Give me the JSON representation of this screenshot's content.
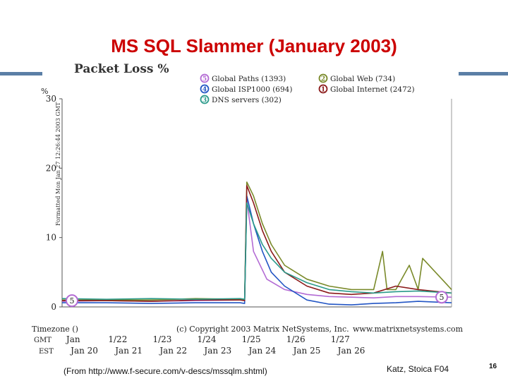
{
  "slide": {
    "title": "MS SQL Slammer (January 2003)",
    "source": "(From http://www.f-secure.com/v-descs/mssqlm.shtml)",
    "author": "Katz, Stoica F04",
    "page_number": "16"
  },
  "chart_data": {
    "type": "line",
    "title": "Packet Loss %",
    "ylabel": "%",
    "ylim": [
      0,
      30
    ],
    "xlim": [
      0,
      8.75
    ],
    "y_ticks": [
      0,
      10,
      20,
      30
    ],
    "side_label": "Formatted Mon Jan 27 12:26:44 2003 GMT",
    "legend": [
      {
        "num": "5",
        "label": "Global Paths (1393)",
        "color": "#b36bd4"
      },
      {
        "num": "2",
        "label": "Global Web (734)",
        "color": "#7a8a2a"
      },
      {
        "num": "4",
        "label": "Global ISP1000 (694)",
        "color": "#2255c4"
      },
      {
        "num": "1",
        "label": "Global Internet (2472)",
        "color": "#8b1a1a"
      },
      {
        "num": "3",
        "label": "DNS servers (302)",
        "color": "#2a9a8a"
      }
    ],
    "marker": "5",
    "series": [
      {
        "name": "Global Paths (1393)",
        "color": "#b36bd4",
        "x": [
          0,
          1,
          2,
          3,
          4,
          4.1,
          4.15,
          4.3,
          4.6,
          5,
          5.5,
          6,
          6.5,
          7,
          7.5,
          8,
          8.75
        ],
        "y": [
          0.8,
          0.9,
          0.8,
          0.9,
          1.0,
          1.0,
          15.5,
          8.0,
          4.0,
          2.5,
          1.8,
          1.5,
          1.4,
          1.3,
          1.5,
          1.5,
          1.4
        ]
      },
      {
        "name": "Global Web (734)",
        "color": "#7a8a2a",
        "x": [
          0,
          1,
          2,
          3,
          4,
          4.1,
          4.15,
          4.3,
          4.5,
          4.7,
          5,
          5.5,
          6,
          6.5,
          7,
          7.2,
          7.3,
          7.5,
          7.8,
          8,
          8.1,
          8.75
        ],
        "y": [
          1.0,
          1.0,
          1.0,
          1.2,
          1.1,
          1.0,
          18.0,
          16.0,
          12.0,
          9.0,
          6.0,
          4.0,
          3.0,
          2.5,
          2.5,
          8.0,
          2.5,
          2.5,
          6.0,
          2.5,
          7.0,
          2.5
        ]
      },
      {
        "name": "Global ISP1000 (694)",
        "color": "#2255c4",
        "x": [
          0,
          1,
          2,
          3,
          4,
          4.1,
          4.15,
          4.3,
          4.5,
          4.7,
          5,
          5.5,
          6,
          6.5,
          7,
          7.5,
          8,
          8.75
        ],
        "y": [
          0.6,
          0.6,
          0.5,
          0.6,
          0.6,
          0.5,
          16.0,
          12.0,
          8.0,
          5.0,
          3.0,
          1.0,
          0.4,
          0.3,
          0.5,
          0.6,
          0.8,
          0.6
        ]
      },
      {
        "name": "Global Internet (2472)",
        "color": "#8b1a1a",
        "x": [
          0,
          1,
          2,
          3,
          4,
          4.1,
          4.15,
          4.3,
          4.5,
          4.7,
          5,
          5.5,
          6,
          6.5,
          7,
          7.5,
          8,
          8.75
        ],
        "y": [
          0.9,
          0.9,
          0.8,
          1.0,
          1.0,
          0.9,
          17.5,
          15.0,
          11.0,
          8.0,
          5.0,
          3.0,
          2.0,
          1.8,
          2.0,
          3.0,
          2.5,
          2.0
        ]
      },
      {
        "name": "DNS servers (302)",
        "color": "#2a9a8a",
        "x": [
          0,
          1,
          2,
          3,
          4,
          4.1,
          4.15,
          4.3,
          4.5,
          4.7,
          5,
          5.5,
          6,
          6.5,
          7,
          7.5,
          8,
          8.75
        ],
        "y": [
          1.2,
          1.1,
          1.2,
          1.1,
          1.2,
          1.1,
          15.0,
          12.0,
          9.0,
          7.0,
          5.0,
          3.5,
          2.5,
          2.2,
          2.0,
          2.2,
          2.3,
          2.0
        ]
      }
    ],
    "footer": {
      "timezone_label": "Timezone ()",
      "gmt_label": "GMT",
      "est_label": "EST",
      "copyright": "(c) Copyright 2003 Matrix NetSystems, Inc.",
      "site": "www.matrixnetsystems.com",
      "gmt_ticks": [
        {
          "label": "Jan",
          "x": 0.25
        },
        {
          "label": "1/22",
          "x": 1.25
        },
        {
          "label": "1/23",
          "x": 2.25
        },
        {
          "label": "1/24",
          "x": 3.25
        },
        {
          "label": "1/25",
          "x": 4.25
        },
        {
          "label": "1/26",
          "x": 5.25
        },
        {
          "label": "1/27",
          "x": 6.25
        }
      ],
      "est_ticks": [
        {
          "label": "Jan 20",
          "x": 0.5
        },
        {
          "label": "Jan 21",
          "x": 1.5
        },
        {
          "label": "Jan 22",
          "x": 2.5
        },
        {
          "label": "Jan 23",
          "x": 3.5
        },
        {
          "label": "Jan 24",
          "x": 4.5
        },
        {
          "label": "Jan 25",
          "x": 5.5
        },
        {
          "label": "Jan 26",
          "x": 6.5
        }
      ]
    }
  }
}
